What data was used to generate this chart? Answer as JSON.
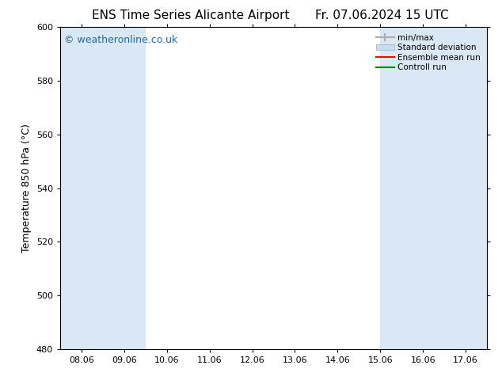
{
  "title_left": "ENS Time Series Alicante Airport",
  "title_right": "Fr. 07.06.2024 15 UTC",
  "ylabel": "Temperature 850 hPa (°C)",
  "ylim": [
    480,
    600
  ],
  "yticks": [
    480,
    500,
    520,
    540,
    560,
    580,
    600
  ],
  "xtick_labels": [
    "08.06",
    "09.06",
    "10.06",
    "11.06",
    "12.06",
    "13.06",
    "14.06",
    "15.06",
    "16.06",
    "17.06"
  ],
  "xtick_positions": [
    0,
    1,
    2,
    3,
    4,
    5,
    6,
    7,
    8,
    9
  ],
  "xlim": [
    -0.5,
    9.5
  ],
  "watermark": "© weatheronline.co.uk",
  "watermark_color": "#1a6ea8",
  "background_color": "#ffffff",
  "plot_bg_color": "#ffffff",
  "shaded_bands": [
    {
      "x_start": -0.5,
      "x_end": 0.5,
      "color": "#dae8f5"
    },
    {
      "x_start": 0.5,
      "x_end": 1.5,
      "color": "#dae8f5"
    },
    {
      "x_start": 7.0,
      "x_end": 8.0,
      "color": "#dae8f5"
    },
    {
      "x_start": 8.0,
      "x_end": 9.5,
      "color": "#dae8f5"
    }
  ],
  "legend_items": [
    {
      "label": "min/max",
      "color": "#aaaaaa",
      "lw": 1.5
    },
    {
      "label": "Standard deviation",
      "color": "#c5ddf0",
      "lw": 8
    },
    {
      "label": "Ensemble mean run",
      "color": "#ff0000",
      "lw": 1.5
    },
    {
      "label": "Controll run",
      "color": "#008800",
      "lw": 1.5
    }
  ],
  "title_fontsize": 11,
  "tick_fontsize": 8,
  "label_fontsize": 9,
  "watermark_fontsize": 9
}
